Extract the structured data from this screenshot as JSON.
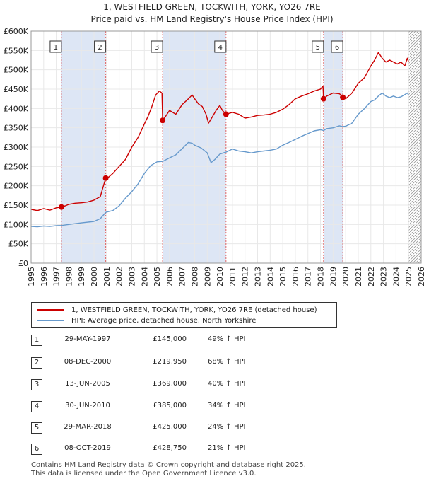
{
  "title_line1": "1, WESTFIELD GREEN, TOCKWITH, YORK, YO26 7RE",
  "title_line2": "Price paid vs. HM Land Registry's House Price Index (HPI)",
  "colors": {
    "property": "#cc0000",
    "hpi": "#6699cc",
    "shade": "#dde6f5",
    "vline": "#e06666",
    "grid": "#e8e8e8"
  },
  "chart_data": {
    "type": "line",
    "title": "Price paid vs. HM Land Registry's House Price Index (HPI)",
    "xlabel": "",
    "ylabel": "",
    "xlim": [
      1995,
      2026
    ],
    "ylim": [
      0,
      600000
    ],
    "ytick_values": [
      0,
      50000,
      100000,
      150000,
      200000,
      250000,
      300000,
      350000,
      400000,
      450000,
      500000,
      550000,
      600000
    ],
    "ytick_labels": [
      "£0",
      "£50K",
      "£100K",
      "£150K",
      "£200K",
      "£250K",
      "£300K",
      "£350K",
      "£400K",
      "£450K",
      "£500K",
      "£550K",
      "£600K"
    ],
    "xtick_values": [
      1995,
      1996,
      1997,
      1998,
      1999,
      2000,
      2001,
      2002,
      2003,
      2004,
      2005,
      2006,
      2007,
      2008,
      2009,
      2010,
      2011,
      2012,
      2013,
      2014,
      2015,
      2016,
      2017,
      2018,
      2019,
      2020,
      2021,
      2022,
      2023,
      2024,
      2025,
      2026
    ],
    "xtick_labels": [
      "1995",
      "1996",
      "1997",
      "1998",
      "1999",
      "2000",
      "2001",
      "2002",
      "2003",
      "2004",
      "2005",
      "2006",
      "2007",
      "2008",
      "2009",
      "2010",
      "2011",
      "2012",
      "2013",
      "2014",
      "2015",
      "2016",
      "2017",
      "2018",
      "2019",
      "2020",
      "2021",
      "2022",
      "2023",
      "2024",
      "2025",
      "2026"
    ],
    "shaded_ranges": [
      [
        1997.41,
        2000.93
      ],
      [
        2005.45,
        2010.49
      ],
      [
        2018.24,
        2019.77
      ]
    ],
    "hatched_from": 2025.0,
    "sale_markers": [
      {
        "label": "1",
        "x": 1997.41,
        "y": 145000
      },
      {
        "label": "2",
        "x": 2000.93,
        "y": 219950
      },
      {
        "label": "3",
        "x": 2005.45,
        "y": 369000
      },
      {
        "label": "4",
        "x": 2010.49,
        "y": 385000
      },
      {
        "label": "5",
        "x": 2018.24,
        "y": 425000
      },
      {
        "label": "6",
        "x": 2019.77,
        "y": 428750
      }
    ],
    "series": [
      {
        "name": "1, WESTFIELD GREEN, TOCKWITH, YORK, YO26 7RE (detached house)",
        "color": "#cc0000",
        "x": [
          1995.0,
          1995.5,
          1996.0,
          1996.5,
          1997.0,
          1997.41,
          1997.7,
          1998.0,
          1998.5,
          1999.0,
          1999.5,
          2000.0,
          2000.5,
          2000.93,
          2001.0,
          2001.5,
          2002.0,
          2002.5,
          2003.0,
          2003.5,
          2004.0,
          2004.3,
          2004.6,
          2004.9,
          2005.2,
          2005.4,
          2005.45,
          2005.7,
          2006.0,
          2006.5,
          2007.0,
          2007.5,
          2007.8,
          2008.0,
          2008.3,
          2008.6,
          2008.9,
          2009.1,
          2009.4,
          2009.7,
          2010.0,
          2010.2,
          2010.49,
          2010.8,
          2011.0,
          2011.5,
          2012.0,
          2012.5,
          2013.0,
          2013.5,
          2014.0,
          2014.5,
          2015.0,
          2015.5,
          2016.0,
          2016.5,
          2017.0,
          2017.5,
          2018.0,
          2018.2,
          2018.24,
          2018.5,
          2019.0,
          2019.5,
          2019.7,
          2019.77,
          2020.0,
          2020.5,
          2021.0,
          2021.5,
          2022.0,
          2022.3,
          2022.6,
          2022.9,
          2023.2,
          2023.5,
          2023.8,
          2024.1,
          2024.4,
          2024.7,
          2024.9,
          2025.0
        ],
        "y": [
          139000,
          136000,
          141000,
          137000,
          143000,
          145000,
          148000,
          152000,
          155000,
          156000,
          158000,
          163000,
          172000,
          219950,
          218000,
          232000,
          250000,
          268000,
          300000,
          325000,
          360000,
          380000,
          405000,
          435000,
          445000,
          440000,
          369000,
          380000,
          395000,
          385000,
          410000,
          425000,
          435000,
          425000,
          412000,
          405000,
          385000,
          362000,
          378000,
          395000,
          408000,
          395000,
          385000,
          388000,
          390000,
          385000,
          375000,
          378000,
          382000,
          383000,
          385000,
          390000,
          398000,
          410000,
          425000,
          432000,
          438000,
          445000,
          450000,
          458000,
          425000,
          432000,
          440000,
          438000,
          433000,
          428750,
          425000,
          440000,
          465000,
          480000,
          510000,
          525000,
          545000,
          530000,
          520000,
          525000,
          520000,
          515000,
          520000,
          510000,
          530000,
          520000
        ]
      },
      {
        "name": "HPI: Average price, detached house, North Yorkshire",
        "color": "#6699cc",
        "x": [
          1995.0,
          1995.5,
          1996.0,
          1996.5,
          1997.0,
          1997.41,
          1998.0,
          1998.5,
          1999.0,
          1999.5,
          2000.0,
          2000.5,
          2000.93,
          2001.0,
          2001.5,
          2002.0,
          2002.5,
          2003.0,
          2003.5,
          2004.0,
          2004.5,
          2005.0,
          2005.45,
          2006.0,
          2006.5,
          2007.0,
          2007.5,
          2007.8,
          2008.0,
          2008.5,
          2009.0,
          2009.3,
          2009.6,
          2010.0,
          2010.49,
          2011.0,
          2011.5,
          2012.0,
          2012.5,
          2013.0,
          2013.5,
          2014.0,
          2014.5,
          2015.0,
          2015.5,
          2016.0,
          2016.5,
          2017.0,
          2017.5,
          2018.0,
          2018.24,
          2018.5,
          2019.0,
          2019.5,
          2019.77,
          2020.0,
          2020.5,
          2021.0,
          2021.5,
          2022.0,
          2022.3,
          2022.6,
          2022.9,
          2023.2,
          2023.5,
          2023.8,
          2024.1,
          2024.4,
          2024.7,
          2024.9,
          2025.0
        ],
        "y": [
          95000,
          94000,
          96000,
          95000,
          97000,
          97500,
          100000,
          102000,
          104000,
          106000,
          108000,
          115000,
          131000,
          132000,
          136000,
          148000,
          168000,
          185000,
          205000,
          232000,
          252000,
          262000,
          263000,
          272000,
          280000,
          296000,
          312000,
          310000,
          305000,
          298000,
          285000,
          260000,
          268000,
          282000,
          287000,
          295000,
          290000,
          288000,
          285000,
          288000,
          290000,
          292000,
          295000,
          305000,
          312000,
          320000,
          328000,
          335000,
          342000,
          345000,
          343000,
          348000,
          350000,
          355000,
          353000,
          354000,
          362000,
          385000,
          400000,
          418000,
          422000,
          432000,
          440000,
          432000,
          428000,
          432000,
          428000,
          430000,
          436000,
          440000,
          435000
        ]
      }
    ]
  },
  "legend": {
    "property_label": "1, WESTFIELD GREEN, TOCKWITH, YORK, YO26 7RE (detached house)",
    "hpi_label": "HPI: Average price, detached house, North Yorkshire"
  },
  "transactions": [
    {
      "num": "1",
      "date": "29-MAY-1997",
      "price": "£145,000",
      "hpi": "49% ↑ HPI"
    },
    {
      "num": "2",
      "date": "08-DEC-2000",
      "price": "£219,950",
      "hpi": "68% ↑ HPI"
    },
    {
      "num": "3",
      "date": "13-JUN-2005",
      "price": "£369,000",
      "hpi": "40% ↑ HPI"
    },
    {
      "num": "4",
      "date": "30-JUN-2010",
      "price": "£385,000",
      "hpi": "34% ↑ HPI"
    },
    {
      "num": "5",
      "date": "29-MAR-2018",
      "price": "£425,000",
      "hpi": "24% ↑ HPI"
    },
    {
      "num": "6",
      "date": "08-OCT-2019",
      "price": "£428,750",
      "hpi": "21% ↑ HPI"
    }
  ],
  "footer_line1": "Contains HM Land Registry data © Crown copyright and database right 2025.",
  "footer_line2": "This data is licensed under the Open Government Licence v3.0."
}
